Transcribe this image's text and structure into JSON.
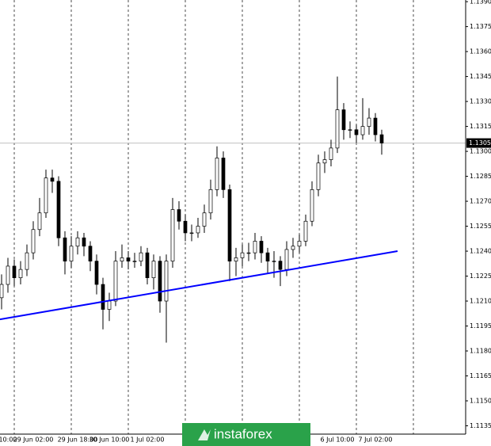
{
  "chart_data": {
    "type": "candlestick",
    "categories": [
      null,
      "10:00",
      null,
      null,
      null,
      "29 Jun 02:00",
      null,
      null,
      null,
      null,
      null,
      null,
      "29 Jun 18:00",
      null,
      null,
      null,
      null,
      "30 Jun 10:00",
      null,
      null,
      null,
      null,
      null,
      "1 Jul 02:00",
      null,
      null,
      null,
      null,
      null,
      null,
      null,
      null,
      null,
      null,
      null,
      null,
      null,
      null,
      null,
      null,
      null,
      null,
      null,
      null,
      null,
      null,
      null,
      null,
      null,
      null,
      null,
      null,
      null,
      "6 Jul 10:00",
      null,
      null,
      null,
      null,
      null,
      "7 Jul 02:00",
      null
    ],
    "open": [
      1.1212,
      1.122,
      1.1231,
      1.1224,
      1.1229,
      1.1239,
      1.1253,
      1.1263,
      1.1284,
      1.1282,
      1.1248,
      1.1234,
      1.1243,
      1.1248,
      1.1243,
      1.1234,
      1.122,
      1.1205,
      1.121,
      1.1234,
      1.1236,
      1.1234,
      1.1234,
      1.1239,
      1.1224,
      1.1234,
      1.121,
      1.1234,
      1.1265,
      1.1258,
      1.1251,
      1.1251,
      1.1255,
      1.1263,
      1.1277,
      1.1296,
      1.1277,
      1.1234,
      1.1236,
      1.1239,
      1.1239,
      1.1246,
      1.1239,
      1.1234,
      1.1234,
      1.1229,
      1.1241,
      1.1243,
      1.1246,
      1.1258,
      1.1277,
      1.1293,
      1.1295,
      1.1302,
      1.1325,
      1.1313,
      1.1313,
      1.131,
      1.1315,
      1.132,
      1.131
    ],
    "high": [
      1.1226,
      1.1236,
      1.1235,
      1.1234,
      1.1244,
      1.1258,
      1.1272,
      1.1289,
      1.1289,
      1.1285,
      1.1252,
      1.1249,
      1.1252,
      1.1251,
      1.1246,
      1.1238,
      1.1224,
      1.1215,
      1.124,
      1.1244,
      1.124,
      1.1239,
      1.1243,
      1.1242,
      1.1238,
      1.1237,
      1.1238,
      1.1272,
      1.127,
      1.1262,
      1.1256,
      1.126,
      1.1268,
      1.1283,
      1.1303,
      1.13,
      1.128,
      1.1242,
      1.1244,
      1.1245,
      1.1251,
      1.1249,
      1.1242,
      1.124,
      1.1237,
      1.1246,
      1.1248,
      1.125,
      1.1262,
      1.1282,
      1.1298,
      1.13,
      1.1307,
      1.1345,
      1.1329,
      1.1318,
      1.1316,
      1.1332,
      1.1326,
      1.1323,
      1.1313
    ],
    "low": [
      1.1205,
      1.1215,
      1.1219,
      1.122,
      1.1225,
      1.1235,
      1.1249,
      1.126,
      1.1275,
      1.1243,
      1.1226,
      1.123,
      1.1238,
      1.1237,
      1.1228,
      1.1214,
      1.1193,
      1.1198,
      1.1207,
      1.123,
      1.1229,
      1.123,
      1.1231,
      1.122,
      1.1217,
      1.1203,
      1.1185,
      1.123,
      1.1253,
      1.1246,
      1.1246,
      1.1248,
      1.1251,
      1.1259,
      1.1273,
      1.1272,
      1.1222,
      1.1225,
      1.1231,
      1.1234,
      1.1235,
      1.1233,
      1.1227,
      1.1224,
      1.1219,
      1.1225,
      1.1236,
      1.1239,
      1.1243,
      1.1255,
      1.1273,
      1.1287,
      1.1291,
      1.1299,
      1.1307,
      1.1308,
      1.1305,
      1.1307,
      1.131,
      1.1306,
      1.1298
    ],
    "close": [
      1.122,
      1.1231,
      1.1224,
      1.1229,
      1.1239,
      1.1253,
      1.1263,
      1.1284,
      1.1282,
      1.1248,
      1.1234,
      1.1243,
      1.1248,
      1.1243,
      1.1234,
      1.122,
      1.1205,
      1.121,
      1.1234,
      1.1236,
      1.1234,
      1.1234,
      1.1239,
      1.1224,
      1.1234,
      1.121,
      1.1234,
      1.1265,
      1.1258,
      1.1251,
      1.1251,
      1.1255,
      1.1263,
      1.1277,
      1.1296,
      1.1277,
      1.1234,
      1.1236,
      1.1239,
      1.1239,
      1.1246,
      1.1239,
      1.1234,
      1.1234,
      1.1229,
      1.1241,
      1.1243,
      1.1246,
      1.1258,
      1.1277,
      1.1293,
      1.1295,
      1.1302,
      1.1325,
      1.1313,
      1.1313,
      1.131,
      1.1315,
      1.132,
      1.131,
      1.1305
    ],
    "up_color": "#ffffff",
    "down_color": "#000000",
    "wick_color": "#000000",
    "ylim": [
      1.113,
      1.1391
    ],
    "yticks": [
      1.1135,
      {
        "value": 1.115,
        "label": "1.1150"
      },
      1.1165,
      {
        "value": 1.118,
        "label": "1.1180"
      },
      1.1195,
      {
        "value": 1.121,
        "label": "1.1210"
      },
      1.1225,
      {
        "value": 1.124,
        "label": "1.1240"
      },
      1.1255,
      {
        "value": 1.127,
        "label": "1.1270"
      },
      1.1285,
      {
        "value": 1.13,
        "label": "1.1300"
      },
      1.1315,
      {
        "value": 1.133,
        "label": "1.1330"
      },
      1.1345,
      {
        "value": 1.136,
        "label": "1.1360"
      },
      1.1375,
      {
        "value": 1.139,
        "label": "1.1390"
      }
    ],
    "current_price": 1.1305,
    "trendline": {
      "x": [
        -0.25,
        62.5
      ],
      "values": [
        1.1199,
        1.124
      ],
      "color": "#0000ff"
    },
    "watermark": "instaforex"
  }
}
